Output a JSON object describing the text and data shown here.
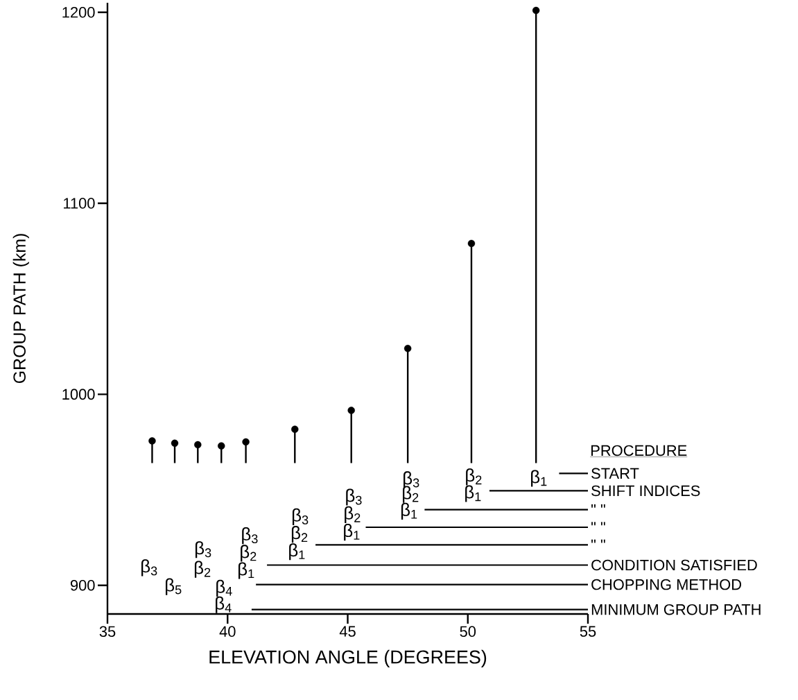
{
  "chart_data": {
    "type": "scatter",
    "xlabel": "ELEVATION ANGLE (DEGREES)",
    "ylabel": "GROUP PATH (km)",
    "legend_title": "PROCEDURE",
    "xlim": [
      35,
      55
    ],
    "ylim": [
      885,
      1205
    ],
    "xticks": [
      35,
      40,
      45,
      50,
      55
    ],
    "yticks": [
      900,
      1000,
      1100,
      1200
    ],
    "series": [
      {
        "color": "#000000",
        "marker": "circle",
        "x": [
          36.86,
          37.8,
          38.76,
          39.74,
          40.76,
          42.8,
          45.15,
          47.5,
          50.15,
          52.84
        ],
        "values": [
          975.6,
          974.4,
          973.6,
          973,
          975.1,
          981.7,
          991.6,
          1024,
          1079,
          1201
        ],
        "errors": [
          [
            964,
            975.6
          ],
          [
            964,
            974.4
          ],
          [
            964,
            973.6
          ],
          [
            964,
            973
          ],
          [
            964,
            975.1
          ],
          [
            964,
            981.7
          ],
          [
            964,
            991.6
          ],
          [
            964,
            1024
          ],
          [
            964,
            1079
          ],
          [
            964,
            1201
          ]
        ]
      },
      {
        "type": "line",
        "color": "#000000",
        "name": "START",
        "x": [
          53.8,
          55
        ],
        "values": [
          958.6,
          958.6
        ]
      },
      {
        "type": "line",
        "color": "#000000",
        "name": "SHIFT INDICES",
        "x": [
          50.9,
          55
        ],
        "values": [
          949.5,
          949.5
        ]
      },
      {
        "type": "line",
        "color": "#000000",
        "name": "\"     \"",
        "x": [
          48.2,
          55
        ],
        "values": [
          939.6,
          939.6
        ]
      },
      {
        "type": "line",
        "color": "#000000",
        "name": "\"     \"",
        "x": [
          45.75,
          55
        ],
        "values": [
          930.4,
          930.4
        ]
      },
      {
        "type": "line",
        "color": "#000000",
        "name": "\"     \"",
        "x": [
          43.66,
          55
        ],
        "values": [
          921.2,
          921.2
        ]
      },
      {
        "type": "line",
        "color": "#000000",
        "name": "CONDITION SATISFIED",
        "x": [
          41.64,
          55
        ],
        "values": [
          910.6,
          910.6
        ]
      },
      {
        "type": "line",
        "color": "#000000",
        "name": "CHOPPING METHOD",
        "x": [
          41.18,
          55
        ],
        "values": [
          900.4,
          900.4
        ]
      },
      {
        "type": "line",
        "color": "#000000",
        "name": "MINIMUM GROUP PATH",
        "x": [
          41.0,
          55
        ],
        "values": [
          887.3,
          887.3
        ]
      }
    ],
    "annotations": [
      "β$_{3}$",
      "β$_{5}$",
      "β$_{3}$",
      "β$_{2}$",
      "β$_{4}$",
      "β$_{4}$",
      "β$_{3}$",
      "β$_{2}$",
      "β$_{1}$",
      "β$_{3}$",
      "β$_{2}$",
      "β$_{1}$",
      "β$_{3}$",
      "β$_{2}$",
      "β$_{1}$",
      "β$_{3}$",
      "β$_{2}$",
      "β$_{1}$",
      "β$_{2}$",
      "β$_{1}$",
      "β$_{1}$"
    ]
  }
}
